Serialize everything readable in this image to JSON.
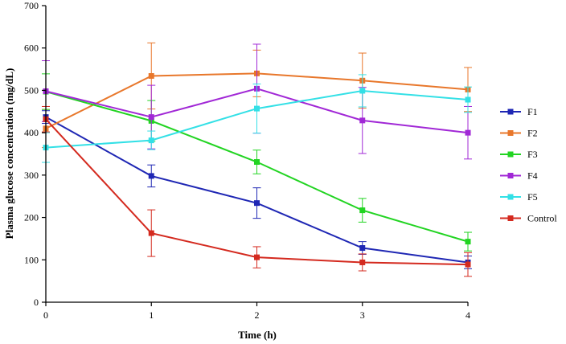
{
  "chart_data": {
    "type": "line",
    "title": "",
    "xlabel": "Time (h)",
    "ylabel": "Plasma glucose concentration (mg/dL)",
    "x": [
      0,
      1,
      2,
      3,
      4
    ],
    "x_ticks": [
      "0",
      "1",
      "2",
      "3",
      "4"
    ],
    "y_ticks": [
      "0",
      "100",
      "200",
      "300",
      "400",
      "500",
      "600",
      "700"
    ],
    "xlim": [
      0,
      4
    ],
    "ylim": [
      0,
      700
    ],
    "grid": false,
    "legend_position": "right",
    "series": [
      {
        "name": "F1",
        "color": "#1f27b4",
        "values": [
          437,
          298,
          234,
          128,
          94
        ],
        "errors": [
          15,
          26,
          36,
          15,
          15
        ]
      },
      {
        "name": "F2",
        "color": "#e8772b",
        "values": [
          410,
          534,
          540,
          523,
          502
        ],
        "errors": [
          45,
          78,
          55,
          65,
          52
        ]
      },
      {
        "name": "F3",
        "color": "#22d422",
        "values": [
          497,
          428,
          331,
          217,
          143
        ],
        "errors": [
          42,
          48,
          28,
          28,
          22
        ]
      },
      {
        "name": "F4",
        "color": "#a128d6",
        "values": [
          498,
          437,
          504,
          429,
          400
        ],
        "errors": [
          72,
          75,
          105,
          78,
          62
        ]
      },
      {
        "name": "F5",
        "color": "#33e0e6",
        "values": [
          365,
          382,
          457,
          499,
          478
        ],
        "errors": [
          35,
          22,
          58,
          38,
          30
        ]
      },
      {
        "name": "Control",
        "color": "#d42a1f",
        "values": [
          432,
          163,
          106,
          94,
          89
        ],
        "errors": [
          30,
          55,
          25,
          20,
          28
        ]
      }
    ]
  }
}
